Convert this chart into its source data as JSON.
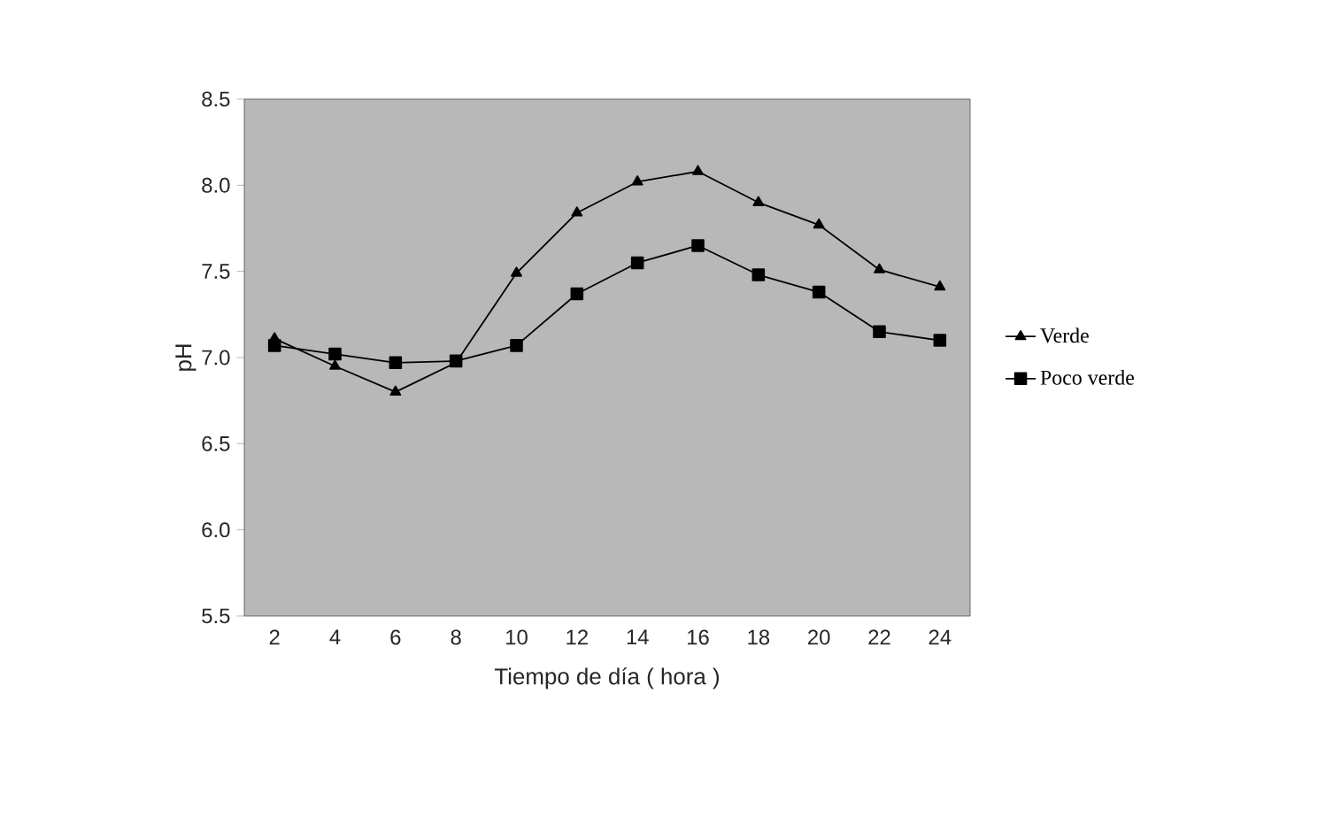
{
  "chart_data": {
    "type": "line",
    "xlabel": "Tiempo de día ( hora )",
    "ylabel": "pH",
    "categories": [
      "2",
      "4",
      "6",
      "8",
      "10",
      "12",
      "14",
      "16",
      "18",
      "20",
      "22",
      "24"
    ],
    "series": [
      {
        "name": "Verde",
        "color": "#000000",
        "marker": "triangle",
        "values": [
          7.11,
          6.95,
          6.8,
          6.97,
          7.49,
          7.84,
          8.02,
          8.08,
          7.9,
          7.77,
          7.51,
          7.41
        ]
      },
      {
        "name": "Poco verde",
        "color": "#000000",
        "marker": "square",
        "values": [
          7.07,
          7.02,
          6.97,
          6.98,
          7.07,
          7.37,
          7.55,
          7.65,
          7.48,
          7.38,
          7.15,
          7.1
        ]
      }
    ],
    "ylim": [
      5.5,
      8.5
    ],
    "yticks": [
      {
        "value": 5.5,
        "label": "5.5"
      },
      {
        "value": 6,
        "label": "6.0"
      },
      {
        "value": 6.5,
        "label": "6.5"
      },
      {
        "value": 7,
        "label": "7.0"
      },
      {
        "value": 7.5,
        "label": "7.5"
      },
      {
        "value": 8,
        "label": "8.0"
      },
      {
        "value": 8.5,
        "label": "8.5"
      }
    ],
    "grid": false,
    "legend": "right",
    "line_style": "solid"
  }
}
